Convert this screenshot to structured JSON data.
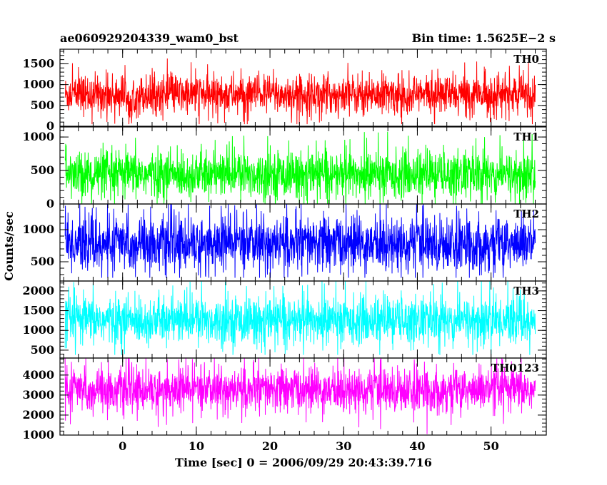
{
  "header": {
    "title": "ae060929204339_wam0_bst",
    "bin_time": "Bin time: 1.5625E−2 s"
  },
  "chart_data": {
    "type": "line",
    "title": "ae060929204339_wam0_bst",
    "subtitle": "Bin time: 1.5625E−2 s",
    "xlabel": "Time [sec] 0 = 2006/09/29 20:43:39.716",
    "ylabel": "Counts/sec",
    "xlim": [
      -8.5,
      57.5
    ],
    "data_x_range": [
      -7.8,
      56.0
    ],
    "x_ticks": [
      0,
      10,
      20,
      30,
      40,
      50
    ],
    "x_tick_labels": [
      "0",
      "10",
      "20",
      "30",
      "40",
      "50"
    ],
    "x_minor_step": 2,
    "grid": false,
    "panels": [
      {
        "series": "TH0",
        "label": "TH0",
        "color": "#ff0000",
        "ylim": [
          0,
          1850
        ],
        "y_ticks": [
          0,
          500,
          1000,
          1500
        ],
        "y_tick_labels": [
          "0",
          "500",
          "1000",
          "1500"
        ],
        "y_minor_step": 100,
        "values": {
          "mean": 760,
          "typical_low": 250,
          "typical_high": 1200,
          "min": 50,
          "max": 1850
        }
      },
      {
        "series": "TH1",
        "label": "TH1",
        "color": "#00ff00",
        "ylim": [
          0,
          1150
        ],
        "y_ticks": [
          0,
          500,
          1000
        ],
        "y_tick_labels": [
          "0",
          "500",
          "1000"
        ],
        "y_minor_step": 100,
        "values": {
          "mean": 440,
          "typical_low": 100,
          "typical_high": 800,
          "min": 0,
          "max": 1150
        }
      },
      {
        "series": "TH2",
        "label": "TH2",
        "color": "#0000ff",
        "ylim": [
          200,
          1400
        ],
        "y_ticks": [
          500,
          1000
        ],
        "y_tick_labels": [
          "500",
          "1000"
        ],
        "y_minor_step": 100,
        "values": {
          "mean": 780,
          "typical_low": 350,
          "typical_high": 1200,
          "min": 250,
          "max": 1400
        }
      },
      {
        "series": "TH3",
        "label": "TH3",
        "color": "#00ffff",
        "ylim": [
          300,
          2250
        ],
        "y_ticks": [
          500,
          1000,
          1500,
          2000
        ],
        "y_tick_labels": [
          "500",
          "1000",
          "1500",
          "2000"
        ],
        "y_minor_step": 100,
        "values": {
          "mean": 1250,
          "typical_low": 650,
          "typical_high": 1850,
          "min": 380,
          "max": 2250
        }
      },
      {
        "series": "TH0123",
        "label": "TH0123",
        "color": "#ff00ff",
        "ylim": [
          1000,
          4850
        ],
        "y_ticks": [
          1000,
          2000,
          3000,
          4000
        ],
        "y_tick_labels": [
          "1000",
          "2000",
          "3000",
          "4000"
        ],
        "y_minor_step": 200,
        "values": {
          "mean": 3250,
          "typical_low": 2100,
          "typical_high": 4300,
          "min": 1050,
          "max": 4850
        }
      }
    ]
  }
}
